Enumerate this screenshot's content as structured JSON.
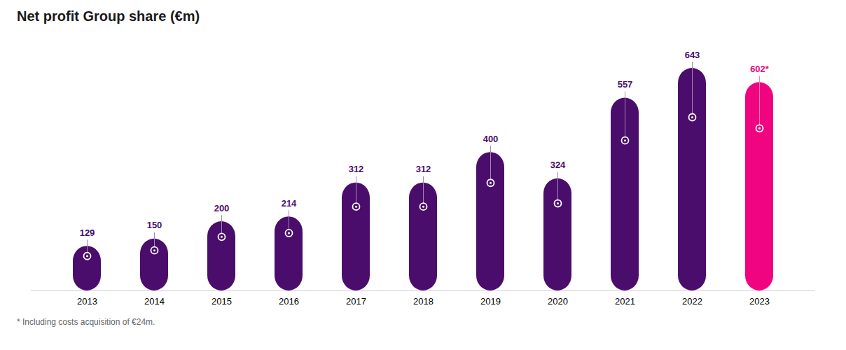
{
  "chart_data": {
    "type": "bar",
    "title": "Net profit Group share (€m)",
    "annotations": [
      "* Including costs acquisition of €24m."
    ],
    "categories": [
      "2013",
      "2014",
      "2015",
      "2016",
      "2017",
      "2018",
      "2019",
      "2020",
      "2021",
      "2022",
      "2023"
    ],
    "values": [
      129,
      150,
      200,
      214,
      312,
      312,
      400,
      324,
      557,
      643,
      602
    ],
    "value_labels": [
      "129",
      "150",
      "200",
      "214",
      "312",
      "312",
      "400",
      "324",
      "557",
      "643",
      "602*"
    ],
    "colors": [
      "#4B0D6B",
      "#4B0D6B",
      "#4B0D6B",
      "#4B0D6B",
      "#4B0D6B",
      "#4B0D6B",
      "#4B0D6B",
      "#4B0D6B",
      "#4B0D6B",
      "#4B0D6B",
      "#F0047F"
    ],
    "ylim": [
      0,
      720
    ],
    "data_labels": true,
    "tick_labels": "x",
    "grid": false
  }
}
